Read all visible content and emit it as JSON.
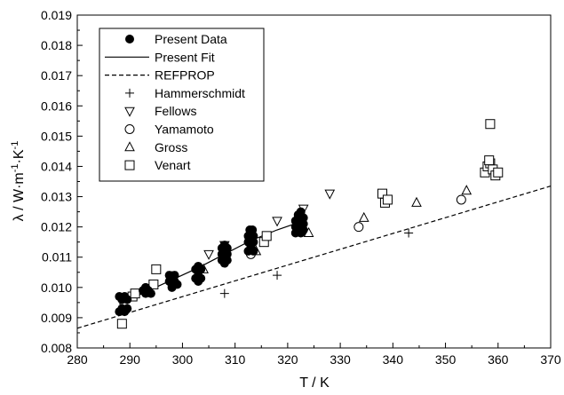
{
  "chart_data": {
    "type": "scatter",
    "xlabel": "T / K",
    "ylabel": {
      "base": "λ / W·m",
      "sup1": "-1",
      "mid": "·K",
      "sup2": "-1"
    },
    "xlim": [
      280,
      370
    ],
    "ylim": [
      0.008,
      0.019
    ],
    "xticks": [
      "280",
      "290",
      "300",
      "310",
      "320",
      "330",
      "340",
      "350",
      "360",
      "370"
    ],
    "yticks": [
      "0.008",
      "0.009",
      "0.010",
      "0.011",
      "0.012",
      "0.013",
      "0.014",
      "0.015",
      "0.016",
      "0.017",
      "0.018",
      "0.019"
    ],
    "grid": false,
    "legend_position": "top-left",
    "legend": [
      {
        "label": "Present Data",
        "marker": "filled-circle"
      },
      {
        "label": "Present Fit",
        "marker": "solid-line"
      },
      {
        "label": "REFPROP",
        "marker": "dashed-line"
      },
      {
        "label": "Hammerschmidt",
        "marker": "plus"
      },
      {
        "label": "Fellows",
        "marker": "triangle-down"
      },
      {
        "label": "Yamamoto",
        "marker": "circle"
      },
      {
        "label": "Gross",
        "marker": "triangle-up"
      },
      {
        "label": "Venart",
        "marker": "square"
      }
    ],
    "series": {
      "present_data": [
        [
          288,
          0.0097
        ],
        [
          288.5,
          0.0096
        ],
        [
          289,
          0.0097
        ],
        [
          289.5,
          0.0096
        ],
        [
          288,
          0.0092
        ],
        [
          288.5,
          0.0093
        ],
        [
          289,
          0.0092
        ],
        [
          289.5,
          0.0093
        ],
        [
          292.5,
          0.0099
        ],
        [
          293,
          0.0098
        ],
        [
          293.5,
          0.0099
        ],
        [
          294,
          0.0098
        ],
        [
          293,
          0.01
        ],
        [
          297.5,
          0.0102
        ],
        [
          298,
          0.0101
        ],
        [
          298.5,
          0.0102
        ],
        [
          299,
          0.0101
        ],
        [
          297.5,
          0.0104
        ],
        [
          298,
          0.0103
        ],
        [
          298.5,
          0.0104
        ],
        [
          298,
          0.01
        ],
        [
          302.5,
          0.0106
        ],
        [
          303,
          0.0105
        ],
        [
          303.5,
          0.0106
        ],
        [
          303,
          0.0107
        ],
        [
          302.5,
          0.0103
        ],
        [
          303,
          0.0102
        ],
        [
          303.5,
          0.0103
        ],
        [
          307.5,
          0.0109
        ],
        [
          308,
          0.0108
        ],
        [
          308.5,
          0.0109
        ],
        [
          307.5,
          0.0111
        ],
        [
          308,
          0.011
        ],
        [
          308.5,
          0.0111
        ],
        [
          307.5,
          0.0113
        ],
        [
          308,
          0.0112
        ],
        [
          308.5,
          0.0113
        ],
        [
          308,
          0.0114
        ],
        [
          312.5,
          0.0112
        ],
        [
          313,
          0.0113
        ],
        [
          313.5,
          0.0112
        ],
        [
          312.5,
          0.0115
        ],
        [
          313,
          0.0114
        ],
        [
          313.5,
          0.0115
        ],
        [
          312.5,
          0.0117
        ],
        [
          313,
          0.0118
        ],
        [
          313.5,
          0.0117
        ],
        [
          312.8,
          0.0119
        ],
        [
          313.3,
          0.0119
        ],
        [
          321.5,
          0.0118
        ],
        [
          322,
          0.0119
        ],
        [
          322.5,
          0.0118
        ],
        [
          323,
          0.0119
        ],
        [
          321.5,
          0.012
        ],
        [
          322,
          0.0121
        ],
        [
          322.5,
          0.012
        ],
        [
          323,
          0.0121
        ],
        [
          321.5,
          0.0122
        ],
        [
          322,
          0.0123
        ],
        [
          322.5,
          0.0122
        ],
        [
          323,
          0.0123
        ],
        [
          322,
          0.0124
        ],
        [
          322.5,
          0.0125
        ]
      ],
      "present_fit": [
        [
          288,
          0.00945
        ],
        [
          293,
          0.00985
        ],
        [
          298,
          0.01025
        ],
        [
          303,
          0.01065
        ],
        [
          308,
          0.0111
        ],
        [
          313,
          0.01155
        ],
        [
          318,
          0.0119
        ],
        [
          323,
          0.0122
        ]
      ],
      "refprop": [
        [
          280,
          0.00865
        ],
        [
          370,
          0.01335
        ]
      ],
      "hammerschmidt": [
        [
          308,
          0.0098
        ],
        [
          318,
          0.0104
        ],
        [
          343,
          0.0118
        ]
      ],
      "fellows": [
        [
          298,
          0.0104
        ],
        [
          305,
          0.0111
        ],
        [
          308,
          0.0114
        ],
        [
          313,
          0.0118
        ],
        [
          318,
          0.0122
        ],
        [
          323,
          0.0126
        ],
        [
          328,
          0.0131
        ]
      ],
      "yamamoto": [
        [
          313,
          0.0111
        ],
        [
          333.5,
          0.012
        ],
        [
          353,
          0.0129
        ]
      ],
      "gross": [
        [
          304,
          0.0106
        ],
        [
          314,
          0.0112
        ],
        [
          324,
          0.0118
        ],
        [
          334.5,
          0.0123
        ],
        [
          344.5,
          0.0128
        ],
        [
          354,
          0.0132
        ]
      ],
      "venart": [
        [
          288.5,
          0.0088
        ],
        [
          290.5,
          0.0097
        ],
        [
          291,
          0.0098
        ],
        [
          294.5,
          0.0101
        ],
        [
          295,
          0.0106
        ],
        [
          315.5,
          0.0115
        ],
        [
          316,
          0.0117
        ],
        [
          338,
          0.0131
        ],
        [
          338.5,
          0.0128
        ],
        [
          339,
          0.0129
        ],
        [
          357.5,
          0.0138
        ],
        [
          358,
          0.014
        ],
        [
          358.5,
          0.0141
        ],
        [
          358.3,
          0.0142
        ],
        [
          359,
          0.0139
        ],
        [
          359.5,
          0.0137
        ],
        [
          360,
          0.0138
        ],
        [
          358.5,
          0.0154
        ]
      ]
    }
  }
}
